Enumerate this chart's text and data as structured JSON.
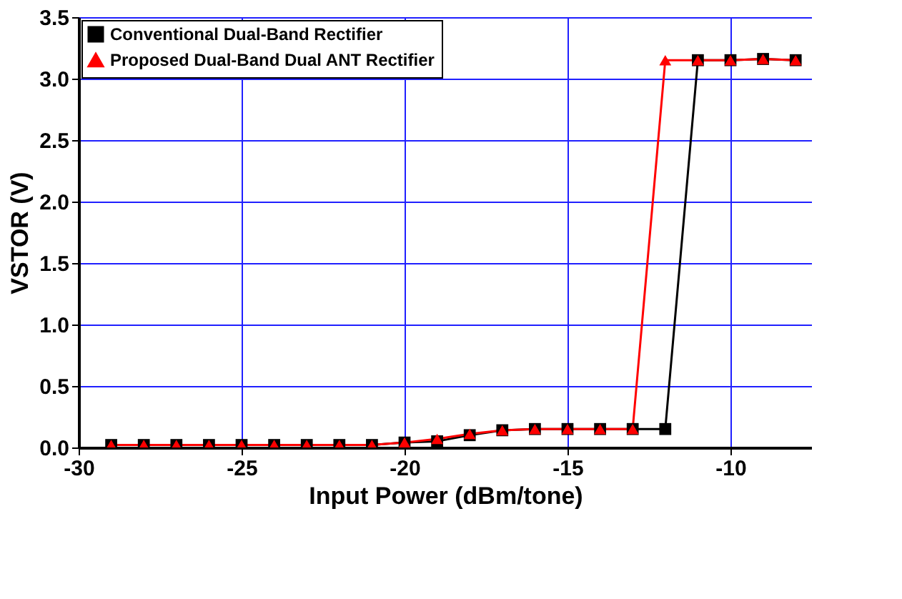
{
  "chart_data": {
    "type": "line",
    "xlabel": "Input Power (dBm/tone)",
    "ylabel": "VSTOR (V)",
    "x": [
      -29,
      -28,
      -27,
      -26,
      -25,
      -24,
      -23,
      -22,
      -21,
      -20,
      -19,
      -18,
      -17,
      -16,
      -15,
      -14,
      -13,
      -12,
      -11,
      -10,
      -9,
      -8
    ],
    "series": [
      {
        "name": "Conventional Dual-Band Rectifier",
        "color": "#000000",
        "marker": "square",
        "values": [
          0.02,
          0.02,
          0.02,
          0.02,
          0.02,
          0.02,
          0.02,
          0.02,
          0.02,
          0.04,
          0.05,
          0.1,
          0.14,
          0.15,
          0.15,
          0.15,
          0.15,
          0.15,
          3.15,
          3.15,
          3.16,
          3.15
        ]
      },
      {
        "name": "Proposed Dual-Band Dual ANT Rectifier",
        "color": "#ff0000",
        "marker": "triangle",
        "values": [
          0.02,
          0.02,
          0.02,
          0.02,
          0.02,
          0.02,
          0.02,
          0.02,
          0.02,
          0.04,
          0.07,
          0.11,
          0.14,
          0.15,
          0.15,
          0.15,
          0.15,
          3.15,
          3.15,
          3.15,
          3.16,
          3.15
        ]
      }
    ],
    "xlim": [
      -30,
      -7.5
    ],
    "xticks": [
      -30,
      -25,
      -20,
      -15,
      -10
    ],
    "ylim": [
      0,
      3.5
    ],
    "yticks": [
      {
        "value": 0,
        "label": "0.0"
      },
      {
        "value": 0.5,
        "label": "0.5"
      },
      {
        "value": 1,
        "label": "1.0"
      },
      {
        "value": 1.5,
        "label": "1.5"
      },
      {
        "value": 2,
        "label": "2.0"
      },
      {
        "value": 2.5,
        "label": "2.5"
      },
      {
        "value": 3,
        "label": "3.0"
      },
      {
        "value": 3.5,
        "label": "3.5"
      }
    ],
    "grid": true,
    "legend": "top left",
    "line_style": "solid"
  }
}
